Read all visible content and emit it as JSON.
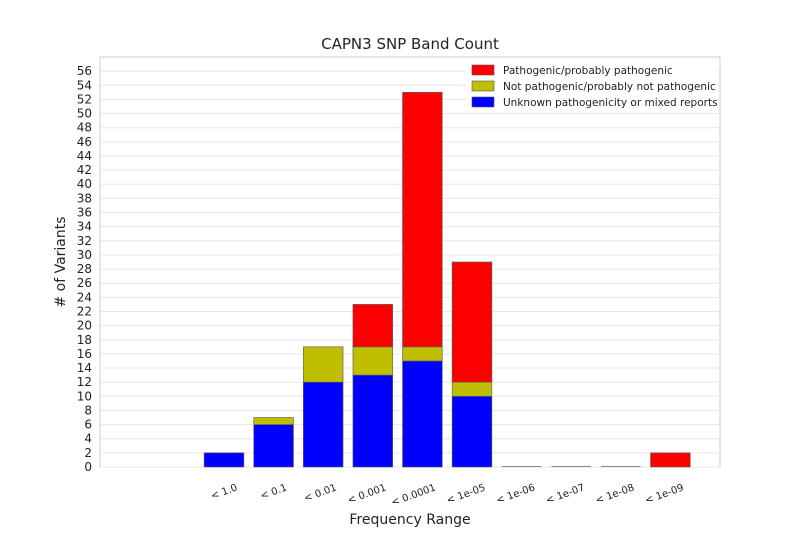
{
  "chart_data": {
    "type": "bar",
    "stacked": true,
    "title": "CAPN3 SNP Band Count",
    "xlabel": "Frequency Range",
    "ylabel": "# of Variants",
    "categories": [
      "< 1.0",
      "< 0.1",
      "< 0.01",
      "< 0.001",
      "< 0.0001",
      "< 1e-05",
      "< 1e-06",
      "< 1e-07",
      "< 1e-08",
      "< 1e-09"
    ],
    "series": [
      {
        "name": "Unknown pathogenicity or mixed reports",
        "color": "#0000ff",
        "values": [
          2,
          6,
          12,
          13,
          15,
          10,
          0,
          0,
          0,
          0
        ]
      },
      {
        "name": "Not pathogenic/probably not pathogenic",
        "color": "#bfbf00",
        "values": [
          0,
          1,
          5,
          4,
          2,
          2,
          0,
          0,
          0,
          0
        ]
      },
      {
        "name": "Pathogenic/probably pathogenic",
        "color": "#ff0000",
        "values": [
          0,
          0,
          0,
          6,
          36,
          17,
          0,
          0,
          0,
          2
        ]
      }
    ],
    "legend_order": [
      "Pathogenic/probably pathogenic",
      "Not pathogenic/probably not pathogenic",
      "Unknown pathogenicity or mixed reports"
    ],
    "ylim": [
      0,
      58
    ],
    "yticks": [
      0,
      2,
      4,
      6,
      8,
      10,
      12,
      14,
      16,
      18,
      20,
      22,
      24,
      26,
      28,
      30,
      32,
      34,
      36,
      38,
      40,
      42,
      44,
      46,
      48,
      50,
      52,
      54,
      56
    ],
    "grid": true,
    "legend_position": "top-right"
  }
}
